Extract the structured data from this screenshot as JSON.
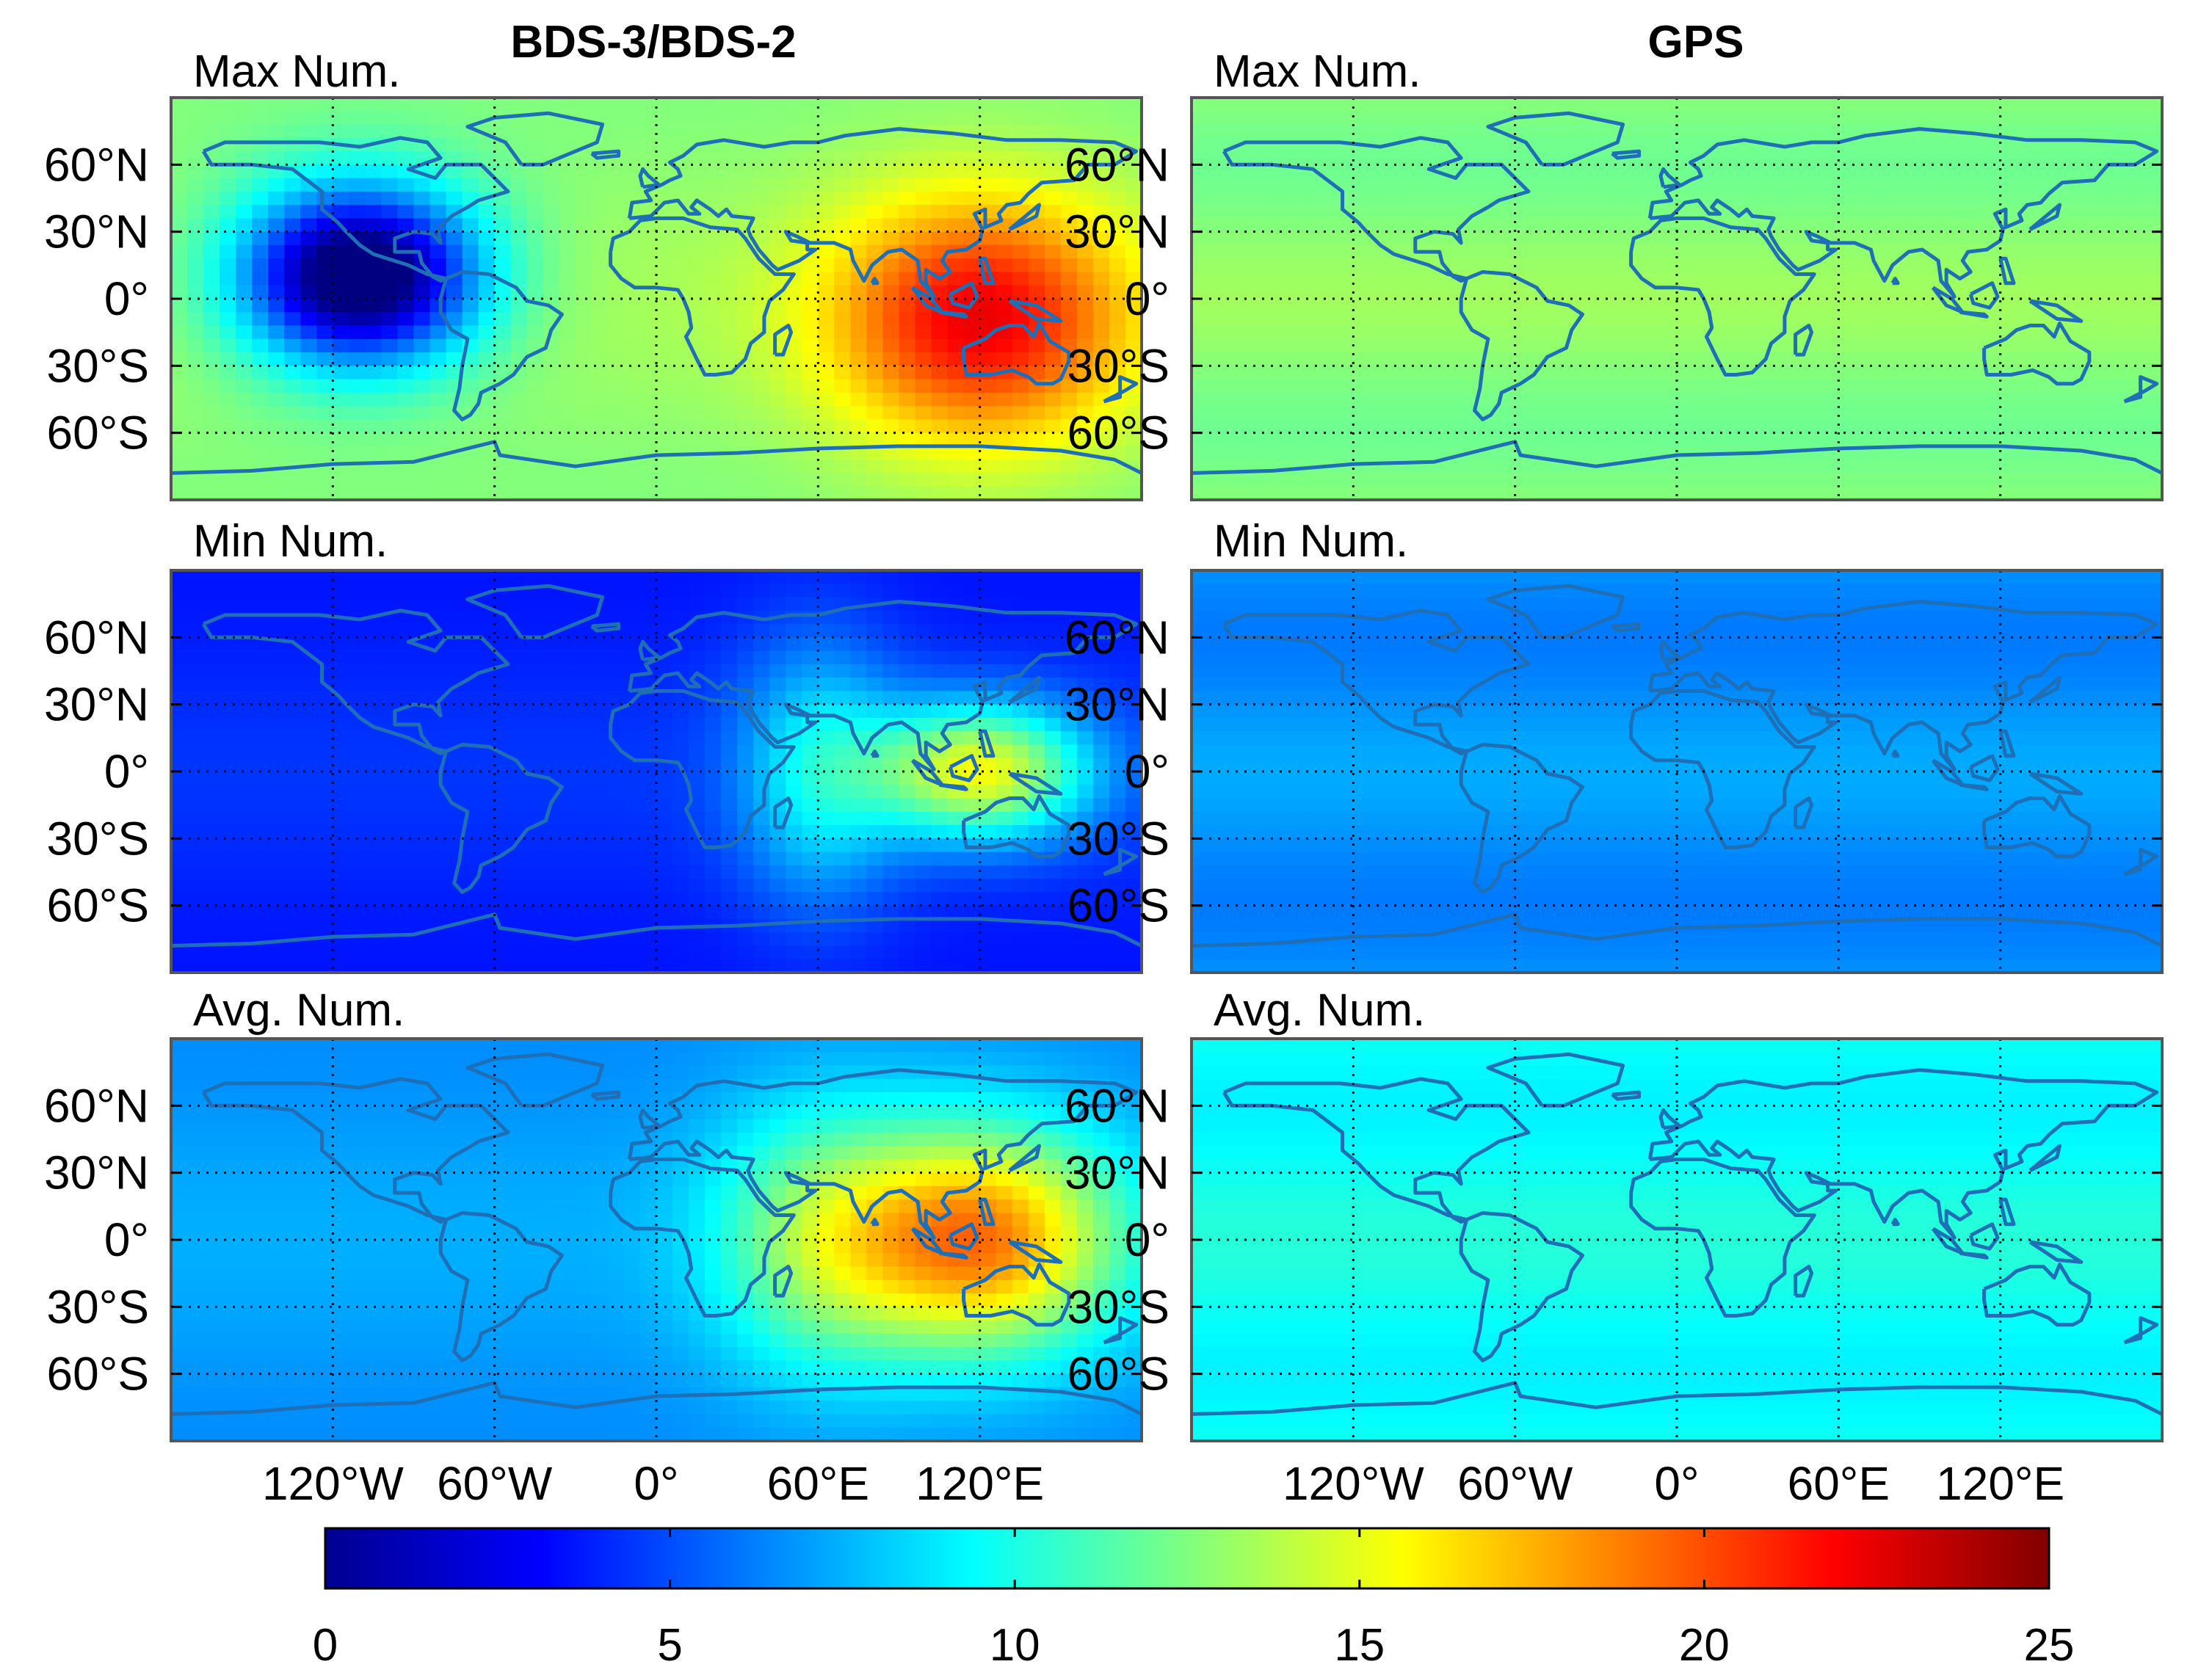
{
  "chart_data": {
    "type": "heatmap",
    "column_titles": [
      "BDS-3/BDS-2",
      "GPS"
    ],
    "row_titles": [
      "Max Num.",
      "Min Num.",
      "Avg. Num."
    ],
    "lat_ticks": [
      "60°N",
      "30°N",
      "0°",
      "30°S",
      "60°S"
    ],
    "lat_tick_values": [
      60,
      30,
      0,
      -30,
      -60
    ],
    "lon_ticks": [
      "120°W",
      "60°W",
      "0°",
      "60°E",
      "120°E"
    ],
    "lon_tick_values": [
      -120,
      -60,
      0,
      60,
      120
    ],
    "xlim": [
      -180,
      180
    ],
    "ylim": [
      -90,
      90
    ],
    "grid": true,
    "colorbar": {
      "colormap": "jet",
      "range": [
        0,
        25
      ],
      "tick_labels": [
        "0",
        "5",
        "10",
        "15",
        "20",
        "25"
      ],
      "tick_values": [
        0,
        5,
        10,
        15,
        20,
        25
      ],
      "placement": "bottom"
    },
    "panels": [
      {
        "row": 0,
        "col": 0,
        "system": "BDS-3/BDS-2",
        "stat": "Max Num.",
        "background": 13.0,
        "hotspots": [
          {
            "lon": 120,
            "lat": -10,
            "peak": 22,
            "spread_lon": 55,
            "spread_lat": 55
          },
          {
            "lon": -110,
            "lat": 10,
            "peak": -2.5,
            "spread_lon": 45,
            "spread_lat": 40
          }
        ]
      },
      {
        "row": 0,
        "col": 1,
        "system": "GPS",
        "stat": "Max Num.",
        "background": 13.0,
        "hotspots": []
      },
      {
        "row": 1,
        "col": 0,
        "system": "BDS-3/BDS-2",
        "stat": "Min Num.",
        "background": 4.0,
        "hotspots": [
          {
            "lon": 120,
            "lat": 0,
            "peak": 15,
            "spread_lon": 40,
            "spread_lat": 30
          },
          {
            "lon": 60,
            "lat": 0,
            "peak": 9,
            "spread_lon": 30,
            "spread_lat": 60
          }
        ]
      },
      {
        "row": 1,
        "col": 1,
        "system": "GPS",
        "stat": "Min Num.",
        "background": 7.0,
        "hotspots": []
      },
      {
        "row": 2,
        "col": 0,
        "system": "BDS-3/BDS-2",
        "stat": "Avg. Num.",
        "background": 7.0,
        "hotspots": [
          {
            "lon": 120,
            "lat": 0,
            "peak": 18.5,
            "spread_lon": 50,
            "spread_lat": 50
          },
          {
            "lon": 60,
            "lat": 0,
            "peak": 12,
            "spread_lon": 40,
            "spread_lat": 60
          }
        ]
      },
      {
        "row": 2,
        "col": 1,
        "system": "GPS",
        "stat": "Avg. Num.",
        "background": 10.0,
        "hotspots": []
      }
    ],
    "colors": {
      "coastline": "#1f6fb6",
      "grid": "#000000"
    }
  }
}
